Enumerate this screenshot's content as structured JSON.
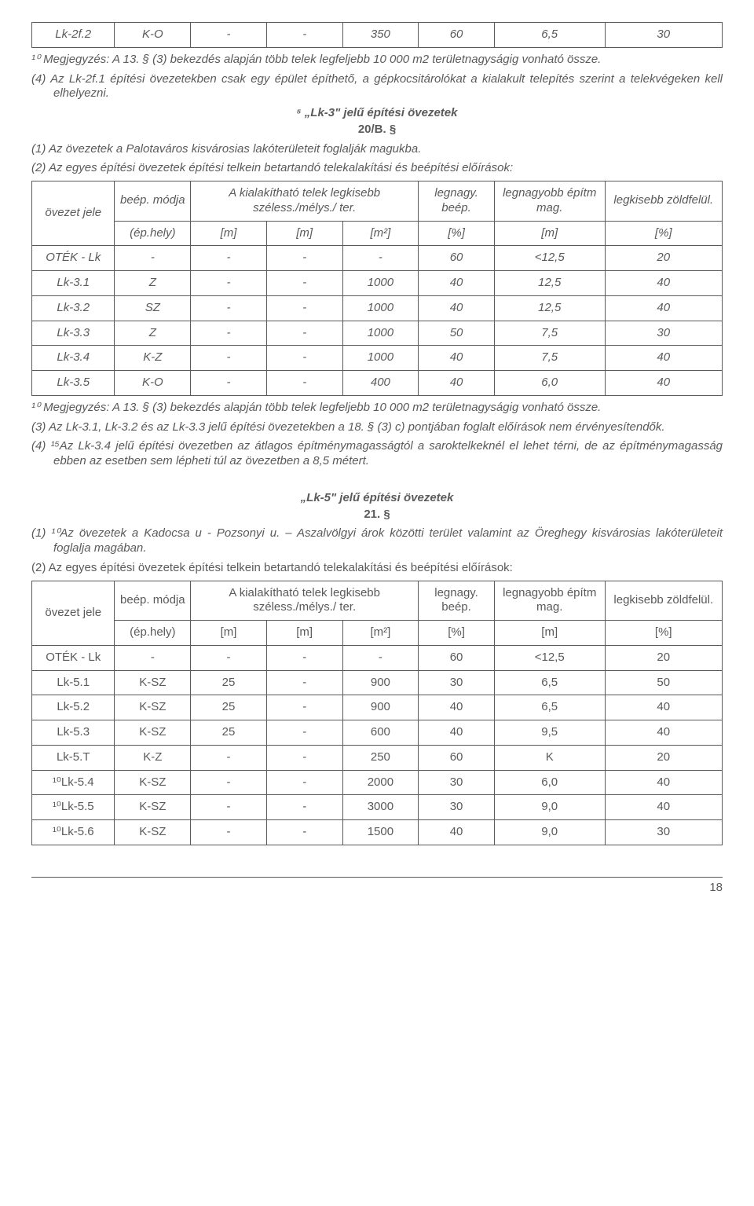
{
  "table1": {
    "row": [
      "Lk-2f.2",
      "K-O",
      "-",
      "-",
      "350",
      "60",
      "6,5",
      "30"
    ]
  },
  "note1": "¹⁰ Megjegyzés: A 13. § (3) bekezdés alapján több telek legfeljebb 10 000 m2 területnagyságig vonható össze.",
  "p4_text": "(4) Az Lk-2f.1 építési övezetekben csak egy épület építhető, a gépkocsitárolókat a kialakult telepítés szerint a telekvégeken kell elhelyezni.",
  "sec_lk3_title": "⁵ „Lk-3\" jelű építési övezetek",
  "sec_lk3_num": "20/B. §",
  "lk3_p1": "(1) Az övezetek a Palotaváros kisvárosias lakóterületeit foglalják magukba.",
  "lk3_p2": "(2) Az egyes építési övezetek építési telkein betartandó telekalakítási és beépítési előírások:",
  "thead": {
    "c1a": "övezet jele",
    "c2a": "beép. módja",
    "c2b": "(ép.hely)",
    "c345a": "A kialakítható telek legkisebb széless./mélys./ ter.",
    "c3b": "[m]",
    "c4b": "[m]",
    "c5b": "[m²]",
    "c6a": "legnagy. beép.",
    "c6b": "[%]",
    "c7a": "legnagyobb építm mag.",
    "c7b": "[m]",
    "c8a": "legkisebb zöldfelül.",
    "c8b": "[%]"
  },
  "table_lk3": {
    "rows": [
      [
        "OTÉK - Lk",
        "-",
        "-",
        "-",
        "-",
        "60",
        "<12,5",
        "20"
      ],
      [
        "Lk-3.1",
        "Z",
        "-",
        "-",
        "1000",
        "40",
        "12,5",
        "40"
      ],
      [
        "Lk-3.2",
        "SZ",
        "-",
        "-",
        "1000",
        "40",
        "12,5",
        "40"
      ],
      [
        "Lk-3.3",
        "Z",
        "-",
        "-",
        "1000",
        "50",
        "7,5",
        "30"
      ],
      [
        "Lk-3.4",
        "K-Z",
        "-",
        "-",
        "1000",
        "40",
        "7,5",
        "40"
      ],
      [
        "Lk-3.5",
        "K-O",
        "-",
        "-",
        "400",
        "40",
        "6,0",
        "40"
      ]
    ]
  },
  "note2": "¹⁰ Megjegyzés: A 13. § (3) bekezdés alapján több telek legfeljebb 10 000 m2 területnagyságig vonható össze.",
  "lk3_p3": "(3) Az Lk-3.1, Lk-3.2 és az Lk-3.3 jelű építési övezetekben a 18. § (3) c) pontjában foglalt előírások nem érvényesítendők.",
  "lk3_p4": "(4) ¹⁵Az Lk-3.4 jelű építési övezetben az átlagos építménymagasságtól a saroktelkeknél el lehet térni, de az építménymagasság ebben az esetben sem lépheti túl az övezetben a 8,5 métert.",
  "sec_lk5_title": "„Lk-5\" jelű építési övezetek",
  "sec_lk5_num": "21. §",
  "lk5_p1": "(1) ¹⁰Az övezetek a Kadocsa u - Pozsonyi u. – Aszalvölgyi árok közötti terület valamint az Öreghegy kisvárosias lakóterületeit foglalja magában.",
  "lk5_p2": "(2) Az egyes építési övezetek építési telkein betartandó telekalakítási és beépítési előírások:",
  "table_lk5": {
    "rows": [
      [
        "OTÉK - Lk",
        "-",
        "-",
        "-",
        "-",
        "60",
        "<12,5",
        "20"
      ],
      [
        "Lk-5.1",
        "K-SZ",
        "25",
        "-",
        "900",
        "30",
        "6,5",
        "50"
      ],
      [
        "Lk-5.2",
        "K-SZ",
        "25",
        "-",
        "900",
        "40",
        "6,5",
        "40"
      ],
      [
        "Lk-5.3",
        "K-SZ",
        "25",
        "-",
        "600",
        "40",
        "9,5",
        "40"
      ],
      [
        "Lk-5.T",
        "K-Z",
        "-",
        "-",
        "250",
        "60",
        "K",
        "20"
      ],
      [
        "¹⁰Lk-5.4",
        "K-SZ",
        "-",
        "-",
        "2000",
        "30",
        "6,0",
        "40"
      ],
      [
        "¹⁰Lk-5.5",
        "K-SZ",
        "-",
        "-",
        "3000",
        "30",
        "9,0",
        "40"
      ],
      [
        "¹⁰Lk-5.6",
        "K-SZ",
        "-",
        "-",
        "1500",
        "40",
        "9,0",
        "30"
      ]
    ]
  },
  "page_number": "18",
  "col_widths": [
    "12%",
    "11%",
    "11%",
    "11%",
    "11%",
    "11%",
    "16%",
    "17%"
  ]
}
